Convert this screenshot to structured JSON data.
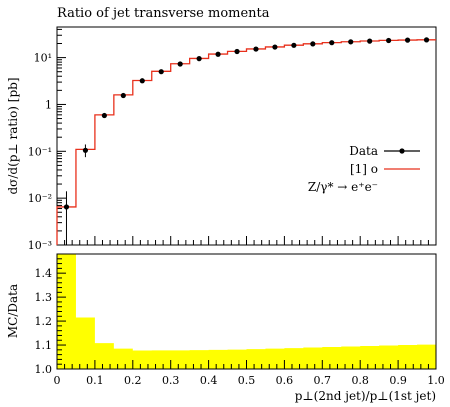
{
  "title": "Ratio of jet transverse momenta",
  "legend": {
    "data_label": "Data",
    "mc_label": "[1] o",
    "process_label": "Z/γ* → e⁺e⁻",
    "data_color": "#000000",
    "mc_color": "#e8301c"
  },
  "main_panel": {
    "ylabel": "dσ/d(p⊥ ratio) [pb]",
    "yscale": "log",
    "ylim": [
      0.001,
      45
    ],
    "ytick_labels": [
      "10⁻³",
      "10⁻²",
      "10⁻¹",
      "1",
      "10¹"
    ]
  },
  "ratio_panel": {
    "ylabel": "MC/Data",
    "ylim": [
      1.0,
      1.48
    ],
    "ytick_labels": [
      "1.0",
      "1.1",
      "1.2",
      "1.3",
      "1.4"
    ],
    "band_color": "#ffff00"
  },
  "xaxis": {
    "label": "p⊥(2nd jet)/p⊥(1st jet)",
    "xlim": [
      0,
      1.0
    ],
    "tick_labels": [
      "0",
      "0.1",
      "0.2",
      "0.3",
      "0.4",
      "0.5",
      "0.6",
      "0.7",
      "0.8",
      "0.9",
      "1.0"
    ]
  },
  "chart_data": {
    "type": "line",
    "title": "Ratio of jet transverse momenta",
    "xlabel": "p⊥(2nd jet)/p⊥(1st jet)",
    "ylabel": "dσ/d(p⊥ ratio) [pb]",
    "bin_edges": [
      0,
      0.05,
      0.1,
      0.15,
      0.2,
      0.25,
      0.3,
      0.35,
      0.4,
      0.45,
      0.5,
      0.55,
      0.6,
      0.65,
      0.7,
      0.75,
      0.8,
      0.85,
      0.9,
      0.95,
      1.0
    ],
    "series": [
      {
        "name": "Data",
        "x": [
          0.025,
          0.075,
          0.125,
          0.175,
          0.225,
          0.275,
          0.325,
          0.375,
          0.425,
          0.475,
          0.525,
          0.575,
          0.625,
          0.675,
          0.725,
          0.775,
          0.825,
          0.875,
          0.925,
          0.975
        ],
        "values": [
          0.0065,
          0.105,
          0.58,
          1.55,
          3.2,
          5.0,
          7.3,
          9.5,
          11.8,
          13.5,
          15.2,
          16.8,
          18.3,
          19.6,
          20.8,
          21.7,
          22.5,
          23.2,
          23.6,
          23.9
        ],
        "yerr_low": [
          0.0055,
          0.03,
          0,
          0,
          0,
          0,
          0,
          0,
          0,
          0,
          0,
          0,
          0,
          0,
          0,
          0,
          0,
          0,
          0,
          0
        ],
        "yerr_high": [
          0.0075,
          0.035,
          0,
          0,
          0,
          0,
          0,
          0,
          0,
          0,
          0,
          0,
          0,
          0,
          0,
          0,
          0,
          0,
          0,
          0
        ]
      },
      {
        "name": "[1] o",
        "values": [
          0.0065,
          0.11,
          0.6,
          1.6,
          3.25,
          5.1,
          7.4,
          9.6,
          11.9,
          13.6,
          15.3,
          16.9,
          18.4,
          19.7,
          20.9,
          21.8,
          22.6,
          23.3,
          23.7,
          24.0
        ]
      }
    ],
    "ratio": {
      "ylabel": "MC/Data",
      "ylim": [
        1.0,
        1.48
      ],
      "band_upper": [
        1.5,
        1.215,
        1.108,
        1.085,
        1.077,
        1.078,
        1.078,
        1.079,
        1.08,
        1.081,
        1.083,
        1.085,
        1.087,
        1.09,
        1.092,
        1.094,
        1.096,
        1.098,
        1.1,
        1.102
      ]
    }
  }
}
